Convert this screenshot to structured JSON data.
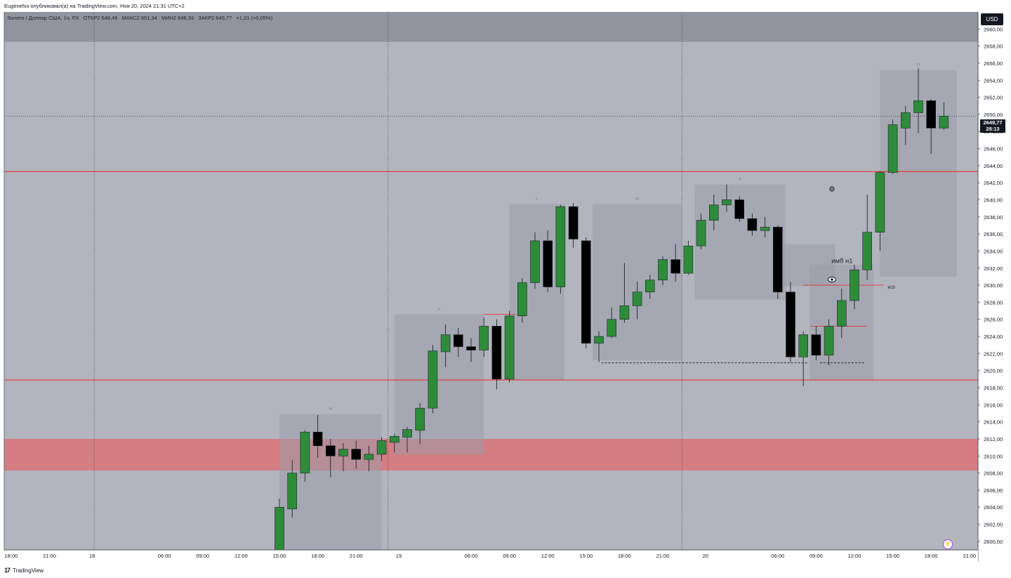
{
  "header": {
    "published": "Eugenefxx опубликовал(а) на TradingView.com, Ноя 20, 2024 21:31 UTC+2"
  },
  "legend": {
    "symbol": "Золото / Доллар США, 1ч, FX",
    "open": "ОТКР2 648,46",
    "high": "МАКС2 651,34",
    "low": "МИН2 648,33",
    "close": "ЗАКР2 649,77",
    "change": "+1,31 (+0,05%)"
  },
  "currency_label": "USD",
  "last_price": {
    "price": "2649,77",
    "countdown": "28:13"
  },
  "footer": {
    "logo_glyph": "17",
    "brand": "TradingView"
  },
  "colors": {
    "background": "#b2b5be",
    "up_candle": "#2e8b3a",
    "down_candle": "#000000",
    "level_line": "#e53935",
    "demand_zone": "#d67a80",
    "supply_box": "#a3a6b0"
  },
  "chart_data": {
    "type": "candlestick",
    "timeframe": "1h",
    "ylim": [
      2599,
      2662
    ],
    "y_ticks": [
      "2600,00",
      "2602,00",
      "2604,00",
      "2606,00",
      "2608,00",
      "2610,00",
      "2612,00",
      "2614,00",
      "2616,00",
      "2618,00",
      "2620,00",
      "2622,00",
      "2624,00",
      "2626,00",
      "2628,00",
      "2630,00",
      "2632,00",
      "2634,00",
      "2636,00",
      "2638,00",
      "2640,00",
      "2642,00",
      "2644,00",
      "2646,00",
      "2648,00",
      "2650,00",
      "2652,00",
      "2654,00",
      "2656,00",
      "2658,00",
      "2660,00"
    ],
    "x_labels": [
      {
        "label": "18:00",
        "bar": -21
      },
      {
        "label": "21:00",
        "bar": -18
      },
      {
        "label": "18",
        "bar": -15
      },
      {
        "label": "06:00",
        "bar": -9
      },
      {
        "label": "09:00",
        "bar": -6
      },
      {
        "label": "12:00",
        "bar": -3
      },
      {
        "label": "15:00",
        "bar": 0
      },
      {
        "label": "18:00",
        "bar": 3
      },
      {
        "label": "21:00",
        "bar": 6
      },
      {
        "label": "19",
        "bar": 9
      },
      {
        "label": "06:00",
        "bar": 15
      },
      {
        "label": "09:00",
        "bar": 18
      },
      {
        "label": "12:00",
        "bar": 21
      },
      {
        "label": "15:00",
        "bar": 24
      },
      {
        "label": "18:00",
        "bar": 27
      },
      {
        "label": "21:00",
        "bar": 30
      },
      {
        "label": "20",
        "bar": 33
      },
      {
        "label": "06:00",
        "bar": 39
      },
      {
        "label": "09:00",
        "bar": 42
      },
      {
        "label": "12:00",
        "bar": 45
      },
      {
        "label": "15:00",
        "bar": 48
      },
      {
        "label": "18:00",
        "bar": 51
      },
      {
        "label": "21:00",
        "bar": 54
      }
    ],
    "day_separators": [
      -14.5,
      8.5,
      31.5
    ],
    "candles": [
      {
        "o": 2599.0,
        "h": 2605.0,
        "l": 2598.0,
        "c": 2604.0
      },
      {
        "o": 2603.8,
        "h": 2609.5,
        "l": 2602.8,
        "c": 2608.0
      },
      {
        "o": 2608.0,
        "h": 2613.0,
        "l": 2607.0,
        "c": 2612.8
      },
      {
        "o": 2612.8,
        "h": 2614.8,
        "l": 2609.8,
        "c": 2611.2
      },
      {
        "o": 2611.2,
        "h": 2612.0,
        "l": 2607.5,
        "c": 2610.0
      },
      {
        "o": 2610.0,
        "h": 2611.5,
        "l": 2608.2,
        "c": 2610.8
      },
      {
        "o": 2610.8,
        "h": 2611.8,
        "l": 2608.5,
        "c": 2609.6
      },
      {
        "o": 2609.6,
        "h": 2611.2,
        "l": 2608.2,
        "c": 2610.2
      },
      {
        "o": 2610.2,
        "h": 2612.2,
        "l": 2609.4,
        "c": 2611.8
      },
      {
        "o": 2611.6,
        "h": 2612.6,
        "l": 2610.4,
        "c": 2612.3
      },
      {
        "o": 2612.2,
        "h": 2613.4,
        "l": 2610.4,
        "c": 2613.1
      },
      {
        "o": 2613.0,
        "h": 2616.2,
        "l": 2611.4,
        "c": 2615.6
      },
      {
        "o": 2615.6,
        "h": 2623.0,
        "l": 2615.0,
        "c": 2622.3
      },
      {
        "o": 2622.2,
        "h": 2625.4,
        "l": 2620.4,
        "c": 2624.2
      },
      {
        "o": 2624.2,
        "h": 2625.0,
        "l": 2621.6,
        "c": 2622.8
      },
      {
        "o": 2622.8,
        "h": 2623.8,
        "l": 2621.0,
        "c": 2622.4
      },
      {
        "o": 2622.4,
        "h": 2626.2,
        "l": 2621.6,
        "c": 2625.2
      },
      {
        "o": 2625.2,
        "h": 2626.0,
        "l": 2617.8,
        "c": 2619.0
      },
      {
        "o": 2619.0,
        "h": 2627.0,
        "l": 2618.6,
        "c": 2626.4
      },
      {
        "o": 2626.4,
        "h": 2630.8,
        "l": 2625.6,
        "c": 2630.3
      },
      {
        "o": 2630.3,
        "h": 2636.2,
        "l": 2629.6,
        "c": 2635.2
      },
      {
        "o": 2635.2,
        "h": 2636.4,
        "l": 2629.2,
        "c": 2629.8
      },
      {
        "o": 2629.8,
        "h": 2639.4,
        "l": 2629.0,
        "c": 2639.2
      },
      {
        "o": 2639.2,
        "h": 2639.6,
        "l": 2634.4,
        "c": 2635.4
      },
      {
        "o": 2635.2,
        "h": 2635.6,
        "l": 2622.6,
        "c": 2623.2
      },
      {
        "o": 2623.2,
        "h": 2624.6,
        "l": 2621.0,
        "c": 2624.0
      },
      {
        "o": 2624.0,
        "h": 2627.4,
        "l": 2623.8,
        "c": 2626.0
      },
      {
        "o": 2626.0,
        "h": 2632.6,
        "l": 2625.6,
        "c": 2627.6
      },
      {
        "o": 2627.6,
        "h": 2630.4,
        "l": 2626.0,
        "c": 2629.2
      },
      {
        "o": 2629.2,
        "h": 2631.2,
        "l": 2628.4,
        "c": 2630.6
      },
      {
        "o": 2630.6,
        "h": 2633.4,
        "l": 2630.0,
        "c": 2633.0
      },
      {
        "o": 2633.0,
        "h": 2634.8,
        "l": 2630.4,
        "c": 2631.4
      },
      {
        "o": 2631.4,
        "h": 2635.2,
        "l": 2631.2,
        "c": 2634.6
      },
      {
        "o": 2634.6,
        "h": 2638.4,
        "l": 2634.2,
        "c": 2637.6
      },
      {
        "o": 2637.6,
        "h": 2640.6,
        "l": 2636.4,
        "c": 2639.4
      },
      {
        "o": 2639.4,
        "h": 2641.8,
        "l": 2638.6,
        "c": 2640.0
      },
      {
        "o": 2640.0,
        "h": 2640.4,
        "l": 2637.4,
        "c": 2637.8
      },
      {
        "o": 2637.8,
        "h": 2638.4,
        "l": 2635.8,
        "c": 2636.4
      },
      {
        "o": 2636.4,
        "h": 2638.0,
        "l": 2635.6,
        "c": 2636.8
      },
      {
        "o": 2636.8,
        "h": 2637.0,
        "l": 2628.4,
        "c": 2629.2
      },
      {
        "o": 2629.2,
        "h": 2630.4,
        "l": 2621.0,
        "c": 2621.6
      },
      {
        "o": 2621.6,
        "h": 2624.6,
        "l": 2618.2,
        "c": 2624.2
      },
      {
        "o": 2624.2,
        "h": 2625.2,
        "l": 2621.2,
        "c": 2621.8
      },
      {
        "o": 2621.8,
        "h": 2626.0,
        "l": 2620.6,
        "c": 2625.2
      },
      {
        "o": 2625.2,
        "h": 2629.6,
        "l": 2623.8,
        "c": 2628.2
      },
      {
        "o": 2628.2,
        "h": 2632.4,
        "l": 2627.2,
        "c": 2631.8
      },
      {
        "o": 2631.8,
        "h": 2640.6,
        "l": 2630.6,
        "c": 2636.2
      },
      {
        "o": 2636.2,
        "h": 2643.4,
        "l": 2634.0,
        "c": 2643.2
      },
      {
        "o": 2643.2,
        "h": 2649.4,
        "l": 2643.0,
        "c": 2648.8
      },
      {
        "o": 2648.4,
        "h": 2651.0,
        "l": 2646.4,
        "c": 2650.2
      },
      {
        "o": 2650.2,
        "h": 2655.4,
        "l": 2647.8,
        "c": 2651.6
      },
      {
        "o": 2651.6,
        "h": 2651.8,
        "l": 2645.4,
        "c": 2648.4
      },
      {
        "o": 2648.4,
        "h": 2651.4,
        "l": 2648.2,
        "c": 2649.8
      }
    ],
    "levels": [
      {
        "price": 2643.3,
        "color": "#e53935"
      },
      {
        "price": 2618.9,
        "color": "#e53935"
      }
    ],
    "demand_zone": {
      "from": 2608.3,
      "to": 2612.0
    },
    "top_band": {
      "from": 2658.5,
      "to": 2662.0
    },
    "boxes": [
      {
        "x1": 0,
        "x2": 8,
        "y1": 2599,
        "y2": 2614.9,
        "tag": "m"
      },
      {
        "x1": 9,
        "x2": 16,
        "y1": 2610.2,
        "y2": 2626.6,
        "tag": "н"
      },
      {
        "x1": 18,
        "x2": 22.3,
        "y1": 2618.9,
        "y2": 2639.5,
        "tag": "L"
      },
      {
        "x1": 24.5,
        "x2": 31.5,
        "y1": 2621.2,
        "y2": 2639.5,
        "tag": "m"
      },
      {
        "x1": 32.5,
        "x2": 39.6,
        "y1": 2628.3,
        "y2": 2641.8,
        "tag": "A"
      },
      {
        "x1": 39,
        "x2": 43.5,
        "y1": 2629.9,
        "y2": 2634.8,
        "tag": ""
      },
      {
        "x1": 41.5,
        "x2": 46.5,
        "y1": 2618.9,
        "y2": 2632.4,
        "tag": "ε"
      },
      {
        "x1": 47,
        "x2": 53,
        "y1": 2631.0,
        "y2": 2655.2,
        "tag": "m"
      }
    ],
    "annotations": [
      {
        "text": "имб н1",
        "bar": 43.2,
        "price": 2632.6
      },
      {
        "text": "м15",
        "bar": 47.6,
        "price": 2629.6
      }
    ],
    "dashed_segments": [
      {
        "price": 2620.9,
        "from": 25.2,
        "to": 41.4
      },
      {
        "price": 2620.9,
        "from": 42.3,
        "to": 45.8
      }
    ],
    "short_red_segments": [
      {
        "price": 2630.0,
        "from": 41.0,
        "to": 47.3
      },
      {
        "price": 2625.2,
        "from": 41.6,
        "to": 46.0
      },
      {
        "price": 2626.6,
        "from": 16.0,
        "to": 18.5
      }
    ],
    "last_price": 2649.77
  }
}
